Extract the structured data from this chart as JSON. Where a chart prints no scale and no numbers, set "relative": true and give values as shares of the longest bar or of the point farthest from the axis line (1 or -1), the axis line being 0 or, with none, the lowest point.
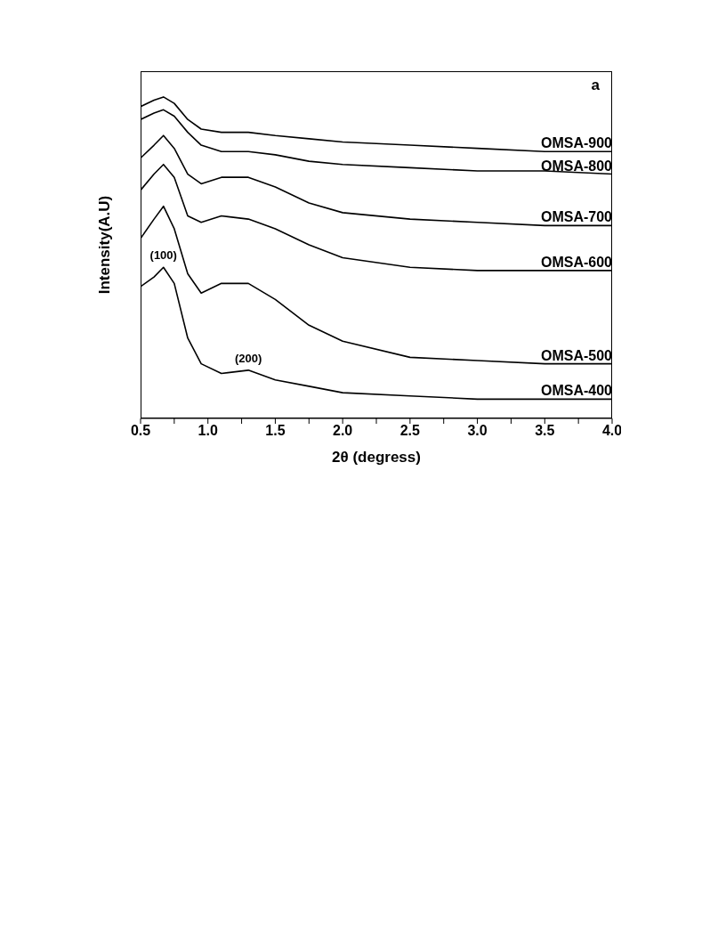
{
  "chart_data": {
    "type": "line",
    "relative": true,
    "xlabel": "2θ (degress)",
    "ylabel": "Intensity(A.U)",
    "x": [
      0.5,
      0.6,
      0.67,
      0.75,
      0.85,
      0.95,
      1.1,
      1.3,
      1.5,
      1.75,
      2.0,
      2.5,
      3.0,
      3.5,
      4.0
    ],
    "xlim": [
      0.5,
      4.0
    ],
    "xticks": [
      0.5,
      {
        "value": 0.75,
        "label": null
      },
      {
        "value": 1,
        "label": "1.0"
      },
      {
        "value": 1.25,
        "label": null
      },
      1.5,
      {
        "value": 1.75,
        "label": null
      },
      {
        "value": 2,
        "label": "2.0"
      },
      {
        "value": 2.25,
        "label": null
      },
      2.5,
      {
        "value": 2.75,
        "label": null
      },
      {
        "value": 3,
        "label": "3.0"
      },
      {
        "value": 3.25,
        "label": null
      },
      3.5,
      {
        "value": 3.75,
        "label": null
      },
      {
        "value": 4,
        "label": "4.0"
      }
    ],
    "marker": "none",
    "line_style": "solid",
    "series": [
      {
        "name": "OMSA-900",
        "color": "#000000",
        "values": [
          0.97,
          0.99,
          1,
          0.98,
          0.93,
          0.9,
          0.89,
          0.89,
          0.88,
          0.87,
          0.86,
          0.85,
          0.84,
          0.83,
          0.83
        ]
      },
      {
        "name": "OMSA-800",
        "color": "#000000",
        "values": [
          0.93,
          0.95,
          0.96,
          0.94,
          0.89,
          0.85,
          0.83,
          0.83,
          0.82,
          0.8,
          0.79,
          0.78,
          0.77,
          0.77,
          0.76
        ]
      },
      {
        "name": "OMSA-700",
        "color": "#000000",
        "values": [
          0.81,
          0.85,
          0.88,
          0.84,
          0.76,
          0.73,
          0.75,
          0.75,
          0.72,
          0.67,
          0.64,
          0.62,
          0.61,
          0.6,
          0.6
        ]
      },
      {
        "name": "OMSA-600",
        "color": "#000000",
        "values": [
          0.71,
          0.76,
          0.79,
          0.75,
          0.63,
          0.61,
          0.63,
          0.62,
          0.59,
          0.54,
          0.5,
          0.47,
          0.46,
          0.46,
          0.46
        ]
      },
      {
        "name": "OMSA-500",
        "color": "#000000",
        "values": [
          0.56,
          0.62,
          0.66,
          0.59,
          0.45,
          0.39,
          0.42,
          0.42,
          0.37,
          0.29,
          0.24,
          0.19,
          0.18,
          0.17,
          0.17
        ]
      },
      {
        "name": "OMSA-400",
        "color": "#000000",
        "values": [
          0.41,
          0.44,
          0.47,
          0.42,
          0.25,
          0.17,
          0.14,
          0.15,
          0.12,
          0.1,
          0.08,
          0.07,
          0.06,
          0.06,
          0.06
        ]
      }
    ],
    "annotations": [
      "a",
      {
        "text": "(100)",
        "x": 0.67,
        "y": 0.47
      },
      {
        "text": "(200)",
        "x": 1.3,
        "y": 0.15
      }
    ]
  }
}
